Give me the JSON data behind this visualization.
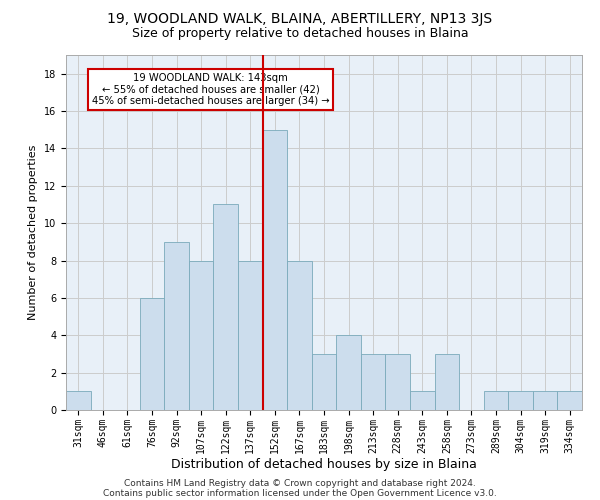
{
  "title1": "19, WOODLAND WALK, BLAINA, ABERTILLERY, NP13 3JS",
  "title2": "Size of property relative to detached houses in Blaina",
  "xlabel": "Distribution of detached houses by size in Blaina",
  "ylabel": "Number of detached properties",
  "footer1": "Contains HM Land Registry data © Crown copyright and database right 2024.",
  "footer2": "Contains public sector information licensed under the Open Government Licence v3.0.",
  "annotation_line1": "19 WOODLAND WALK: 143sqm",
  "annotation_line2": "← 55% of detached houses are smaller (42)",
  "annotation_line3": "45% of semi-detached houses are larger (34) →",
  "bins": [
    "31sqm",
    "46sqm",
    "61sqm",
    "76sqm",
    "92sqm",
    "107sqm",
    "122sqm",
    "137sqm",
    "152sqm",
    "167sqm",
    "183sqm",
    "198sqm",
    "213sqm",
    "228sqm",
    "243sqm",
    "258sqm",
    "273sqm",
    "289sqm",
    "304sqm",
    "319sqm",
    "334sqm"
  ],
  "values": [
    1,
    0,
    0,
    6,
    9,
    8,
    11,
    8,
    15,
    8,
    3,
    4,
    3,
    3,
    1,
    3,
    0,
    1,
    1,
    1,
    1
  ],
  "bar_color": "#ccdded",
  "bar_edge_color": "#7aaabb",
  "marker_color": "#cc0000",
  "ylim": [
    0,
    19
  ],
  "yticks": [
    0,
    2,
    4,
    6,
    8,
    10,
    12,
    14,
    16,
    18
  ],
  "background_color": "#e8f0f8",
  "grid_color": "#cccccc",
  "annotation_box_color": "#ffffff",
  "annotation_box_edge": "#cc0000",
  "title1_fontsize": 10,
  "title2_fontsize": 9,
  "xlabel_fontsize": 9,
  "ylabel_fontsize": 8,
  "tick_fontsize": 7,
  "footer_fontsize": 6.5
}
